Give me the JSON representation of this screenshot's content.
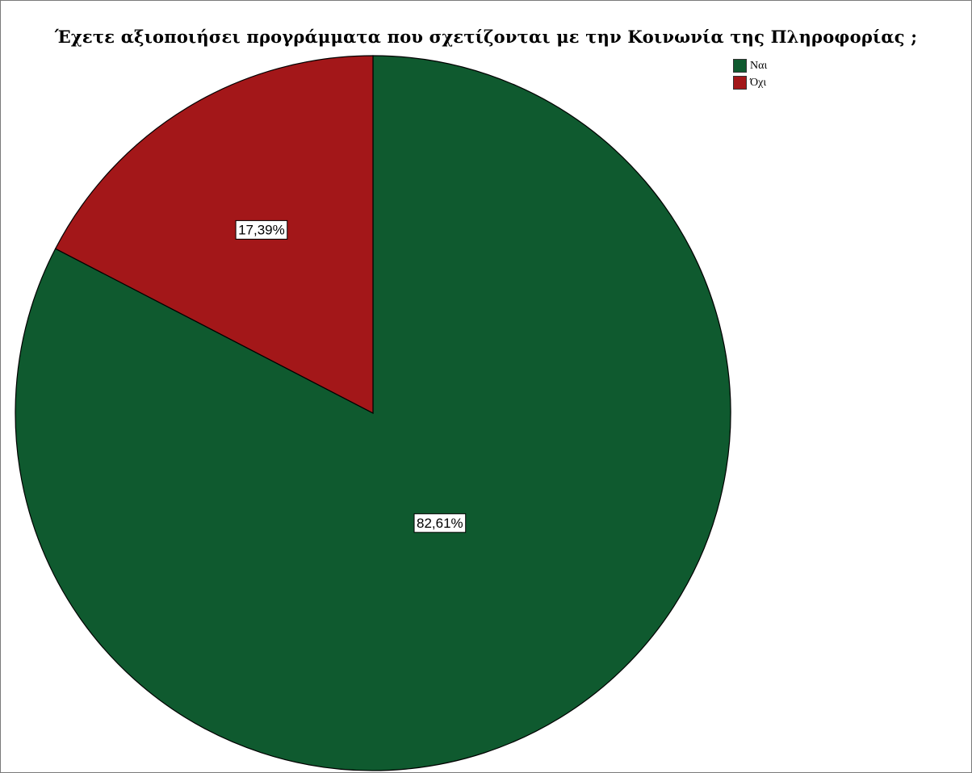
{
  "chart_data": {
    "type": "pie",
    "title": "Έχετε αξιοποιήσει προγράμματα που σχετίζονται με την Κοινωνία της Πληροφορίας ;",
    "categories": [
      "Ναι",
      "Όχι"
    ],
    "values": [
      82.61,
      17.39
    ],
    "data_labels": [
      "82,61%",
      "17,39%"
    ],
    "colors": [
      "#0f5a2f",
      "#a31719"
    ],
    "legend": {
      "placement": "top-right",
      "entries": [
        "Ναι",
        "Όχι"
      ]
    }
  }
}
